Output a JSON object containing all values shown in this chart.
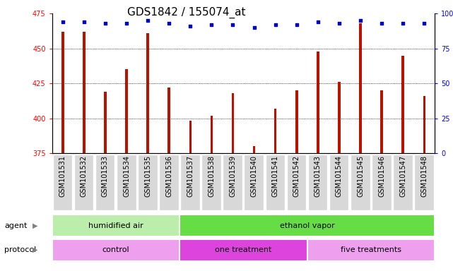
{
  "title": "GDS1842 / 155074_at",
  "samples": [
    "GSM101531",
    "GSM101532",
    "GSM101533",
    "GSM101534",
    "GSM101535",
    "GSM101536",
    "GSM101537",
    "GSM101538",
    "GSM101539",
    "GSM101540",
    "GSM101541",
    "GSM101542",
    "GSM101543",
    "GSM101544",
    "GSM101545",
    "GSM101546",
    "GSM101547",
    "GSM101548"
  ],
  "counts": [
    462,
    462,
    419,
    435,
    461,
    422,
    398,
    402,
    418,
    380,
    407,
    420,
    448,
    426,
    468,
    420,
    445,
    416
  ],
  "percentiles": [
    94,
    94,
    93,
    93,
    95,
    93,
    91,
    92,
    92,
    90,
    92,
    92,
    94,
    93,
    95,
    93,
    93,
    93
  ],
  "ylim_left": [
    375,
    475
  ],
  "ylim_right": [
    0,
    100
  ],
  "yticks_left": [
    375,
    400,
    425,
    450,
    475
  ],
  "yticks_right": [
    0,
    25,
    50,
    75,
    100
  ],
  "agent_groups": [
    {
      "label": "humidified air",
      "start": 0,
      "end": 6,
      "color": "#bbeeaa"
    },
    {
      "label": "ethanol vapor",
      "start": 6,
      "end": 18,
      "color": "#66dd44"
    }
  ],
  "protocol_groups": [
    {
      "label": "control",
      "start": 0,
      "end": 6,
      "color": "#eea0ee"
    },
    {
      "label": "one treatment",
      "start": 6,
      "end": 12,
      "color": "#dd44dd"
    },
    {
      "label": "five treatments",
      "start": 12,
      "end": 18,
      "color": "#eea0ee"
    }
  ],
  "bar_color": "#bb1100",
  "dot_color": "#0000cc",
  "bar_width": 0.12,
  "background_color": "#ffffff",
  "plot_bg_color": "#ffffff",
  "grid_color": "#000000",
  "title_fontsize": 11,
  "tick_fontsize": 7,
  "label_fontsize": 8,
  "xtick_bg_color": "#d8d8d8",
  "right_yaxis_label": "100%"
}
